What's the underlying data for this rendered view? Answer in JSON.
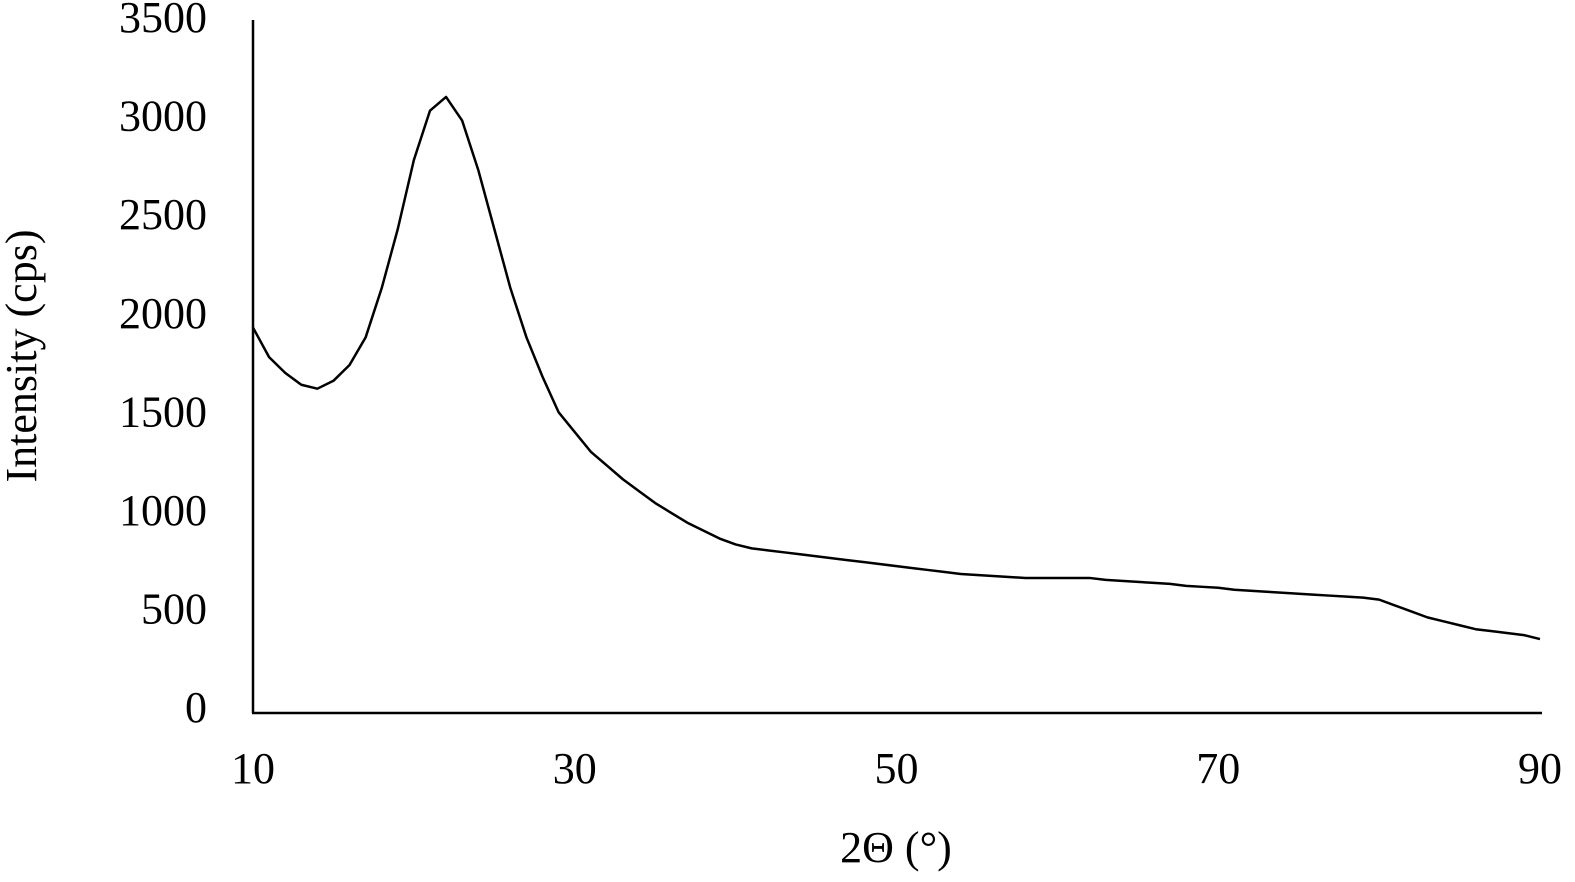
{
  "chart_data": {
    "type": "line",
    "x_label": "2Θ (°)",
    "y_label": "Intensity (cps)",
    "x": [
      10,
      11,
      12,
      13,
      14,
      15,
      16,
      17,
      18,
      19,
      20,
      21,
      22,
      23,
      24,
      25,
      26,
      27,
      28,
      29,
      30,
      31,
      32,
      33,
      34,
      35,
      36,
      37,
      38,
      39,
      40,
      41,
      42,
      43,
      44,
      45,
      46,
      47,
      48,
      49,
      50,
      51,
      52,
      53,
      54,
      55,
      56,
      57,
      58,
      59,
      60,
      61,
      62,
      63,
      64,
      65,
      66,
      67,
      68,
      69,
      70,
      71,
      72,
      73,
      74,
      75,
      76,
      77,
      78,
      79,
      80,
      81,
      82,
      83,
      84,
      85,
      86,
      87,
      88,
      89,
      90
    ],
    "series": [
      {
        "color": "#000000",
        "values": [
          1950,
          1800,
          1720,
          1660,
          1640,
          1680,
          1760,
          1900,
          2150,
          2450,
          2800,
          3050,
          3120,
          3000,
          2750,
          2450,
          2150,
          1900,
          1700,
          1520,
          1420,
          1320,
          1250,
          1180,
          1120,
          1060,
          1010,
          960,
          920,
          880,
          850,
          830,
          820,
          810,
          800,
          790,
          780,
          770,
          760,
          750,
          740,
          730,
          720,
          710,
          700,
          695,
          690,
          685,
          680,
          680,
          680,
          680,
          680,
          670,
          665,
          660,
          655,
          650,
          640,
          635,
          630,
          620,
          615,
          610,
          605,
          600,
          595,
          590,
          585,
          580,
          570,
          540,
          510,
          480,
          460,
          440,
          420,
          410,
          400,
          390,
          370
        ]
      }
    ],
    "xlim": [
      10,
      90
    ],
    "xticks": [
      10,
      30,
      50,
      70,
      90
    ],
    "ylim": [
      0,
      3500
    ],
    "yticks": [
      0,
      500,
      1000,
      1500,
      2000,
      2500,
      3000,
      3500
    ],
    "grid": false
  }
}
